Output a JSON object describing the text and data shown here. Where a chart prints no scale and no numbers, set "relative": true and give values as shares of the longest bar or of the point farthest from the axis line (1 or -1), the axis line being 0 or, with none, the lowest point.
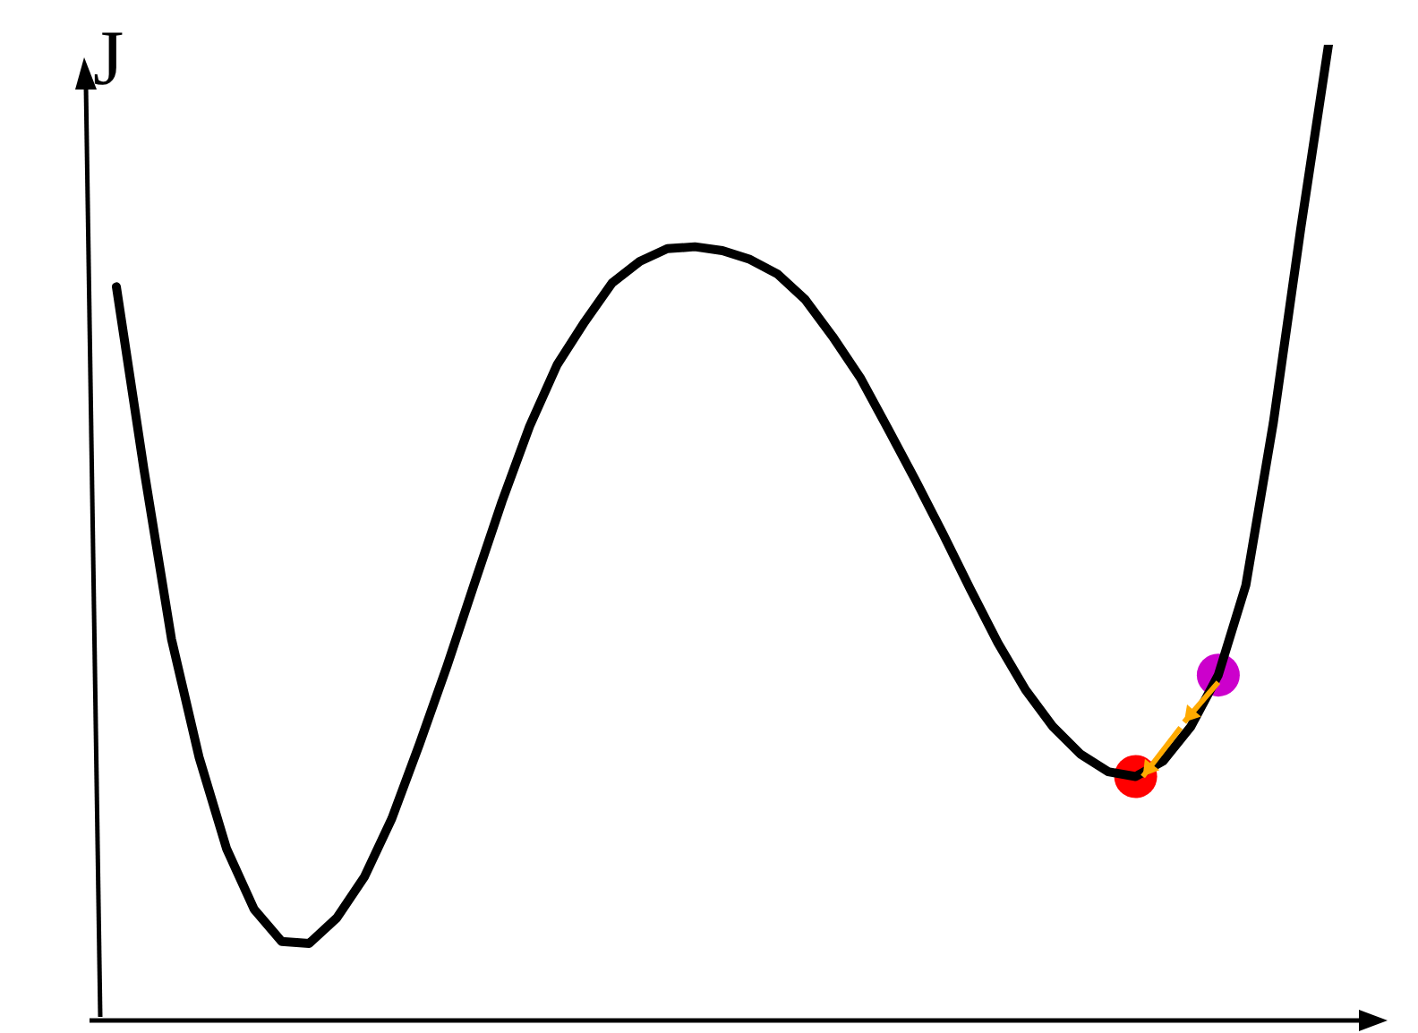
{
  "chart_data": {
    "type": "line",
    "ylabel": "J",
    "relative": true,
    "tick_labels": false,
    "marker": "none",
    "categories": [
      null,
      null,
      null,
      null,
      null,
      null,
      null,
      null,
      null,
      null,
      null,
      null,
      null,
      null,
      null,
      null,
      null,
      null,
      null,
      null,
      null,
      null,
      null,
      null,
      null,
      null,
      null,
      null,
      null,
      null,
      null,
      null,
      null,
      null,
      null,
      null,
      null,
      null,
      null,
      null,
      null,
      null,
      null,
      null,
      null
    ],
    "series": [
      {
        "color": "#000000",
        "values": [
          0.752,
          0.565,
          0.391,
          0.27,
          0.176,
          0.114,
          0.081,
          0.079,
          0.105,
          0.147,
          0.207,
          0.283,
          0.363,
          0.448,
          0.532,
          0.609,
          0.672,
          0.716,
          0.756,
          0.778,
          0.791,
          0.793,
          0.789,
          0.78,
          0.765,
          0.739,
          0.701,
          0.659,
          0.607,
          0.554,
          0.499,
          0.442,
          0.387,
          0.339,
          0.301,
          0.273,
          0.255,
          0.25,
          0.266,
          0.301,
          0.354,
          0.446,
          0.613,
          0.813,
          1
        ]
      }
    ]
  }
}
